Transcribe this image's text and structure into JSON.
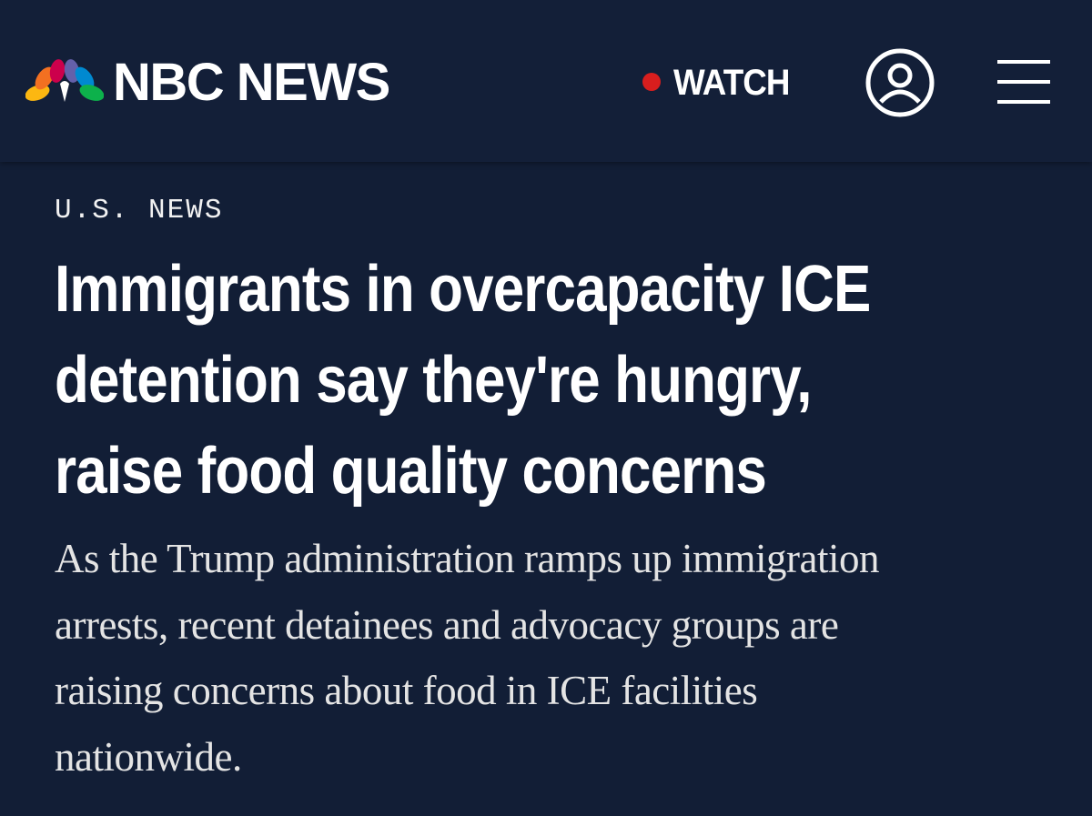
{
  "header": {
    "logo": "NBC NEWS",
    "watch": "WATCH"
  },
  "article": {
    "section": "U.S. NEWS",
    "headline": [
      "Immigrants in overcapacity ICE",
      "detention say they're hungry,",
      "raise food quality concerns"
    ],
    "dek": [
      "As the Trump administration ramps up immigration",
      "arrests, recent detainees and advocacy groups are",
      "raising concerns about food in ICE facilities",
      "nationwide."
    ]
  }
}
